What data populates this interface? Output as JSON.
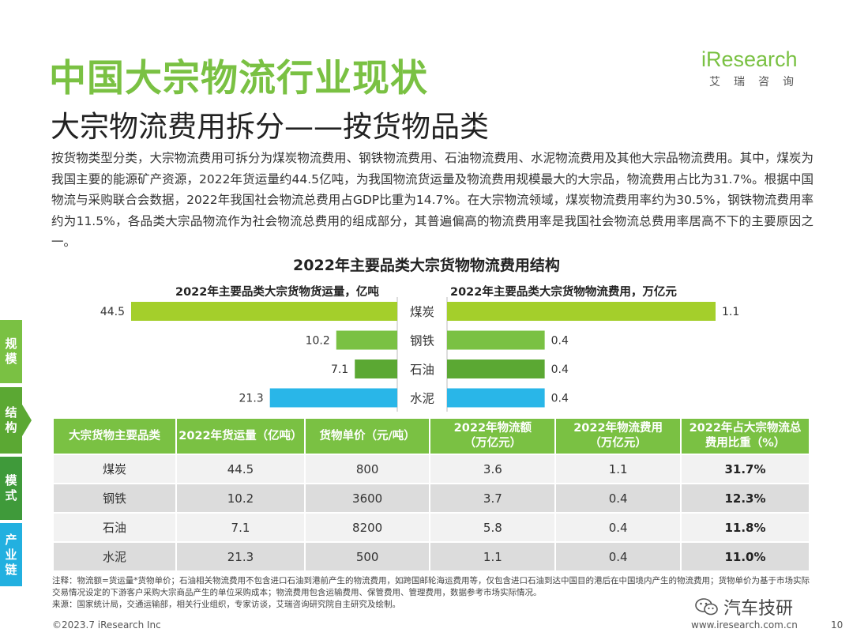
{
  "header": {
    "main_title": "中国大宗物流行业现状",
    "sub_title": "大宗物流费用拆分——按货物品类",
    "logo_text": "iResearch",
    "logo_cn": "艾瑞咨询"
  },
  "paragraph": "按货物类型分类，大宗物流费用可拆分为煤炭物流费用、钢铁物流费用、石油物流费用、水泥物流费用及其他大宗品物流费用。其中，煤炭为我国主要的能源矿产资源，2022年货运量约44.5亿吨，为我国物流货运量及物流费用规模最大的大宗品，物流费用占比为31.7%。根据中国物流与采购联合会数据，2022年我国社会物流总费用占GDP比重为14.7%。在大宗物流领域，煤炭物流费用率约为30.5%，钢铁物流费用率约为11.5%，各品类大宗品物流作为社会物流总费用的组成部分，其普遍偏高的物流费用率是我国社会物流总费用率居高不下的主要原因之一。",
  "side_tabs": [
    "规模",
    "结构",
    "模式",
    "产业链"
  ],
  "chart_data": {
    "type": "bar",
    "title": "2022年主要品类大宗货物物流费用结构",
    "categories": [
      "煤炭",
      "钢铁",
      "石油",
      "水泥"
    ],
    "series": [
      {
        "name": "2022年主要品类大宗货物货运量，亿吨",
        "values": [
          44.5,
          10.2,
          7.1,
          21.3
        ],
        "labels": [
          "44.5",
          "10.2",
          "7.1",
          "21.3"
        ],
        "xlim": [
          0,
          44.5
        ]
      },
      {
        "name": "2022年主要品类大宗货物物流费用，万亿元",
        "values": [
          1.1,
          0.4,
          0.4,
          0.4
        ],
        "labels": [
          "1.1",
          "0.4",
          "0.4",
          "0.4"
        ],
        "xlim": [
          0,
          1.1
        ]
      }
    ],
    "colors": [
      "#a4cf2b",
      "#7ac143",
      "#5ba833",
      "#29b6e8"
    ]
  },
  "table": {
    "headers": [
      "大宗货物主要品类",
      "2022年货运量（亿吨）",
      "货物单价（元/吨）",
      "2022年物流额\n（万亿元）",
      "2022年物流费用\n（万亿元）",
      "2022年占大宗物流总\n费用比重（%）"
    ],
    "rows": [
      [
        "煤炭",
        "44.5",
        "800",
        "3.6",
        "1.1",
        "31.7%"
      ],
      [
        "钢铁",
        "10.2",
        "3600",
        "3.7",
        "0.4",
        "12.3%"
      ],
      [
        "石油",
        "7.1",
        "8200",
        "5.8",
        "0.4",
        "11.8%"
      ],
      [
        "水泥",
        "21.3",
        "500",
        "1.1",
        "0.4",
        "11.0%"
      ]
    ]
  },
  "notes": [
    "注释：物流额=货运量*货物单价；石油相关物流费用不包含进口石油到港前产生的物流费用，如跨国邮轮海运费用等，仅包含进口石油到达中国目的港后在中国境内产生的物流费用；货物单价为基于市场实际交易情况设定的下游客户采购大宗商品产生的单位采购成本；物流费用包含运输费用、保管费用、管理费用，数据参考市场实际情况。",
    "来源：国家统计局，交通运输部，相关行业组织，专家访谈，艾瑞咨询研究院自主研究及绘制。"
  ],
  "footer": {
    "copyright": "©2023.7 iResearch Inc",
    "website": "www.iresearch.com.cn",
    "page": "10",
    "watermark": "汽车技研"
  }
}
